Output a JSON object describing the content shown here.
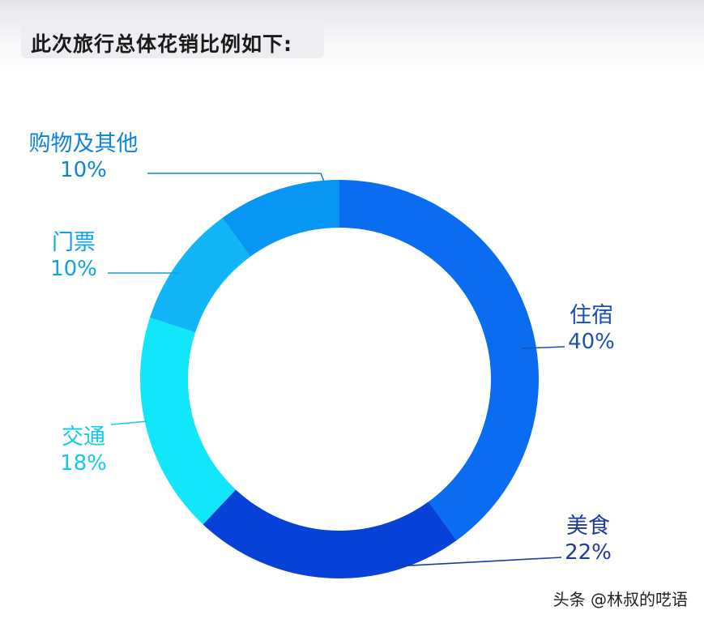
{
  "title": "此次旅行总体花销比例如下:",
  "watermark": "头条 @林叔的呓语",
  "chart_data": {
    "type": "pie",
    "variant": "donut",
    "title": "此次旅行总体花销比例如下:",
    "slices": [
      {
        "label": "住宿",
        "value": 40,
        "display": "40%",
        "color": "#0a6cf0",
        "label_color": "#1a4fb8"
      },
      {
        "label": "美食",
        "value": 22,
        "display": "22%",
        "color": "#0742d8",
        "label_color": "#1e3a9a"
      },
      {
        "label": "交通",
        "value": 18,
        "display": "18%",
        "color": "#12e6fb",
        "label_color": "#13cbe6"
      },
      {
        "label": "门票",
        "value": 10,
        "display": "10%",
        "color": "#10b6f6",
        "label_color": "#10a3e2"
      },
      {
        "label": "购物及其他",
        "value": 10,
        "display": "10%",
        "color": "#0896f4",
        "label_color": "#0d84dc"
      }
    ]
  }
}
